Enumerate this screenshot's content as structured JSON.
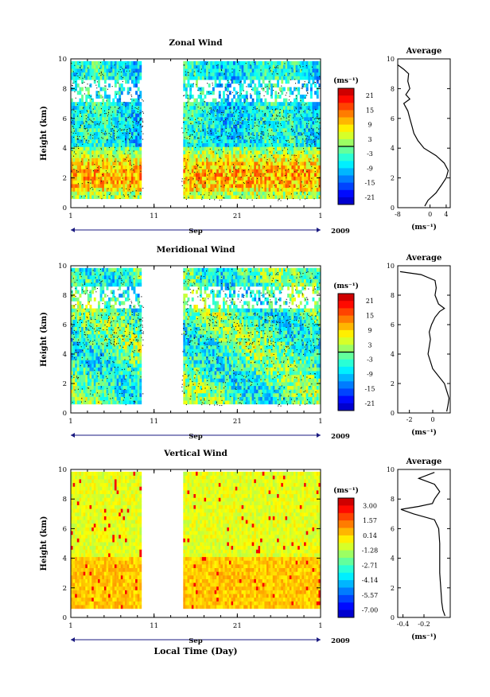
{
  "chart_data": [
    {
      "type": "heatmap",
      "title": "Zonal Wind",
      "ylabel": "Height (km)",
      "xlabel": "",
      "x_ticks": [
        "1",
        "11",
        "21",
        "1"
      ],
      "x_month": "Sep",
      "x_year": "2009",
      "ylim": [
        0,
        10
      ],
      "y_ticks": [
        "0",
        "2",
        "4",
        "6",
        "8",
        "10"
      ],
      "colorbar": {
        "unit_label": "(ms⁻¹)",
        "ticks": [
          "21",
          "15",
          "9",
          "3",
          "-3",
          "-9",
          "-15",
          "-21"
        ]
      },
      "profile": {
        "title": "Average",
        "xlabel": "(ms⁻¹)",
        "x_ticks": [
          "-8",
          "0",
          "4"
        ],
        "xlim": [
          -8,
          5
        ],
        "height": [
          0.1,
          0.5,
          1.0,
          1.5,
          2.0,
          2.5,
          3.0,
          3.5,
          4.0,
          4.5,
          5.0,
          5.5,
          6.0,
          6.5,
          7.0,
          7.3,
          7.6,
          8.0,
          8.5,
          9.0,
          9.3,
          9.6
        ],
        "value": [
          -1.3,
          -0.5,
          1.5,
          2.8,
          4.0,
          4.5,
          3.5,
          1.5,
          -1.5,
          -3.0,
          -4.0,
          -4.5,
          -5.0,
          -5.5,
          -6.5,
          -5.0,
          -6.0,
          -5.0,
          -5.5,
          -5.3,
          -6.5,
          -8.0
        ]
      }
    },
    {
      "type": "heatmap",
      "title": "Meridional Wind",
      "ylabel": "Height (km)",
      "xlabel": "",
      "x_ticks": [
        "1",
        "11",
        "21",
        "1"
      ],
      "x_month": "Sep",
      "x_year": "2009",
      "ylim": [
        0,
        10
      ],
      "y_ticks": [
        "0",
        "2",
        "4",
        "6",
        "8",
        "10"
      ],
      "colorbar": {
        "unit_label": "(ms⁻¹)",
        "ticks": [
          "21",
          "15",
          "9",
          "3",
          "-3",
          "-9",
          "-15",
          "-21"
        ]
      },
      "profile": {
        "title": "Average",
        "xlabel": "(ms⁻¹)",
        "x_ticks": [
          "-2",
          "0"
        ],
        "xlim": [
          -3,
          1.5
        ],
        "height": [
          0.1,
          0.5,
          1.0,
          1.5,
          2.0,
          2.5,
          3.0,
          3.5,
          4.0,
          4.5,
          5.0,
          5.5,
          6.0,
          6.5,
          6.9,
          7.1,
          7.4,
          8.0,
          8.5,
          9.0,
          9.4,
          9.6
        ],
        "value": [
          1.2,
          1.3,
          1.4,
          1.2,
          1.0,
          0.5,
          0.0,
          -0.2,
          -0.4,
          -0.3,
          -0.2,
          -0.3,
          -0.1,
          0.2,
          0.6,
          1.0,
          0.5,
          0.2,
          0.3,
          0.2,
          -1.0,
          -2.8
        ]
      }
    },
    {
      "type": "heatmap",
      "title": "Vertical Wind",
      "ylabel": "Height (km)",
      "xlabel": "Local Time (Day)",
      "x_ticks": [
        "1",
        "11",
        "21",
        "1"
      ],
      "x_month": "Sep",
      "x_year": "2009",
      "ylim": [
        0,
        10
      ],
      "y_ticks": [
        "0",
        "2",
        "4",
        "6",
        "8",
        "10"
      ],
      "colorbar": {
        "unit_label": "(ms⁻¹)",
        "ticks": [
          "3.00",
          "1.57",
          "0.14",
          "-1.28",
          "-2.71",
          "-4.14",
          "-5.57",
          "-7.00"
        ]
      },
      "profile": {
        "title": "Average",
        "xlabel": "(ms⁻¹)",
        "x_ticks": [
          "-0.4",
          "-0.2"
        ],
        "xlim": [
          -0.45,
          0.05
        ],
        "height": [
          0.1,
          0.5,
          1.0,
          2.0,
          3.0,
          4.0,
          5.0,
          6.0,
          6.6,
          7.0,
          7.3,
          7.5,
          7.7,
          8.0,
          8.5,
          9.0,
          9.4,
          9.8
        ],
        "value": [
          0.0,
          -0.02,
          -0.03,
          -0.04,
          -0.05,
          -0.05,
          -0.05,
          -0.06,
          -0.1,
          -0.3,
          -0.42,
          -0.25,
          -0.12,
          -0.1,
          -0.05,
          -0.1,
          -0.25,
          -0.1
        ]
      }
    }
  ]
}
